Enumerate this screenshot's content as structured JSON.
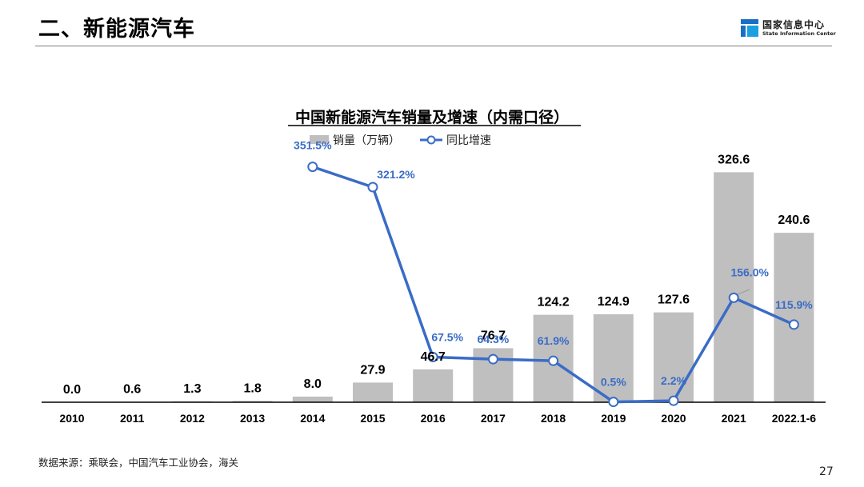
{
  "header": {
    "title": "二、新能源汽车",
    "logo_cn": "国家信息中心",
    "logo_en": "State Information Center"
  },
  "footer": {
    "source": "数据来源：乘联会，中国汽车工业协会，海关",
    "page_number": "27"
  },
  "chart_data": {
    "type": "bar",
    "title": "中国新能源汽车销量及增速（内需口径）",
    "categories": [
      "2010",
      "2011",
      "2012",
      "2013",
      "2014",
      "2015",
      "2016",
      "2017",
      "2018",
      "2019",
      "2020",
      "2021",
      "2022.1-6"
    ],
    "series": [
      {
        "name": "销量（万辆）",
        "type": "bar",
        "color": "#bfbfbf",
        "values": [
          0.0,
          0.6,
          1.3,
          1.8,
          8.0,
          27.9,
          46.7,
          76.7,
          124.2,
          124.9,
          127.6,
          326.6,
          240.6
        ],
        "labels": [
          "0.0",
          "0.6",
          "1.3",
          "1.8",
          "8.0",
          "27.9",
          "46.7",
          "76.7",
          "124.2",
          "124.9",
          "127.6",
          "326.6",
          "240.6"
        ]
      },
      {
        "name": "同比增速",
        "type": "line",
        "color": "#3a6cc6",
        "values": [
          null,
          null,
          null,
          null,
          351.5,
          321.2,
          67.5,
          64.3,
          61.9,
          0.5,
          2.2,
          156.0,
          115.9
        ],
        "labels": [
          null,
          null,
          null,
          null,
          "351.5%",
          "321.2%",
          "67.5%",
          "64.3%",
          "61.9%",
          "0.5%",
          "2.2%",
          "156.0%",
          "115.9%"
        ]
      }
    ],
    "ylim": [
      0,
      335
    ],
    "y2lim": [
      0,
      400
    ],
    "legend_position": "top-center",
    "grid": false
  }
}
